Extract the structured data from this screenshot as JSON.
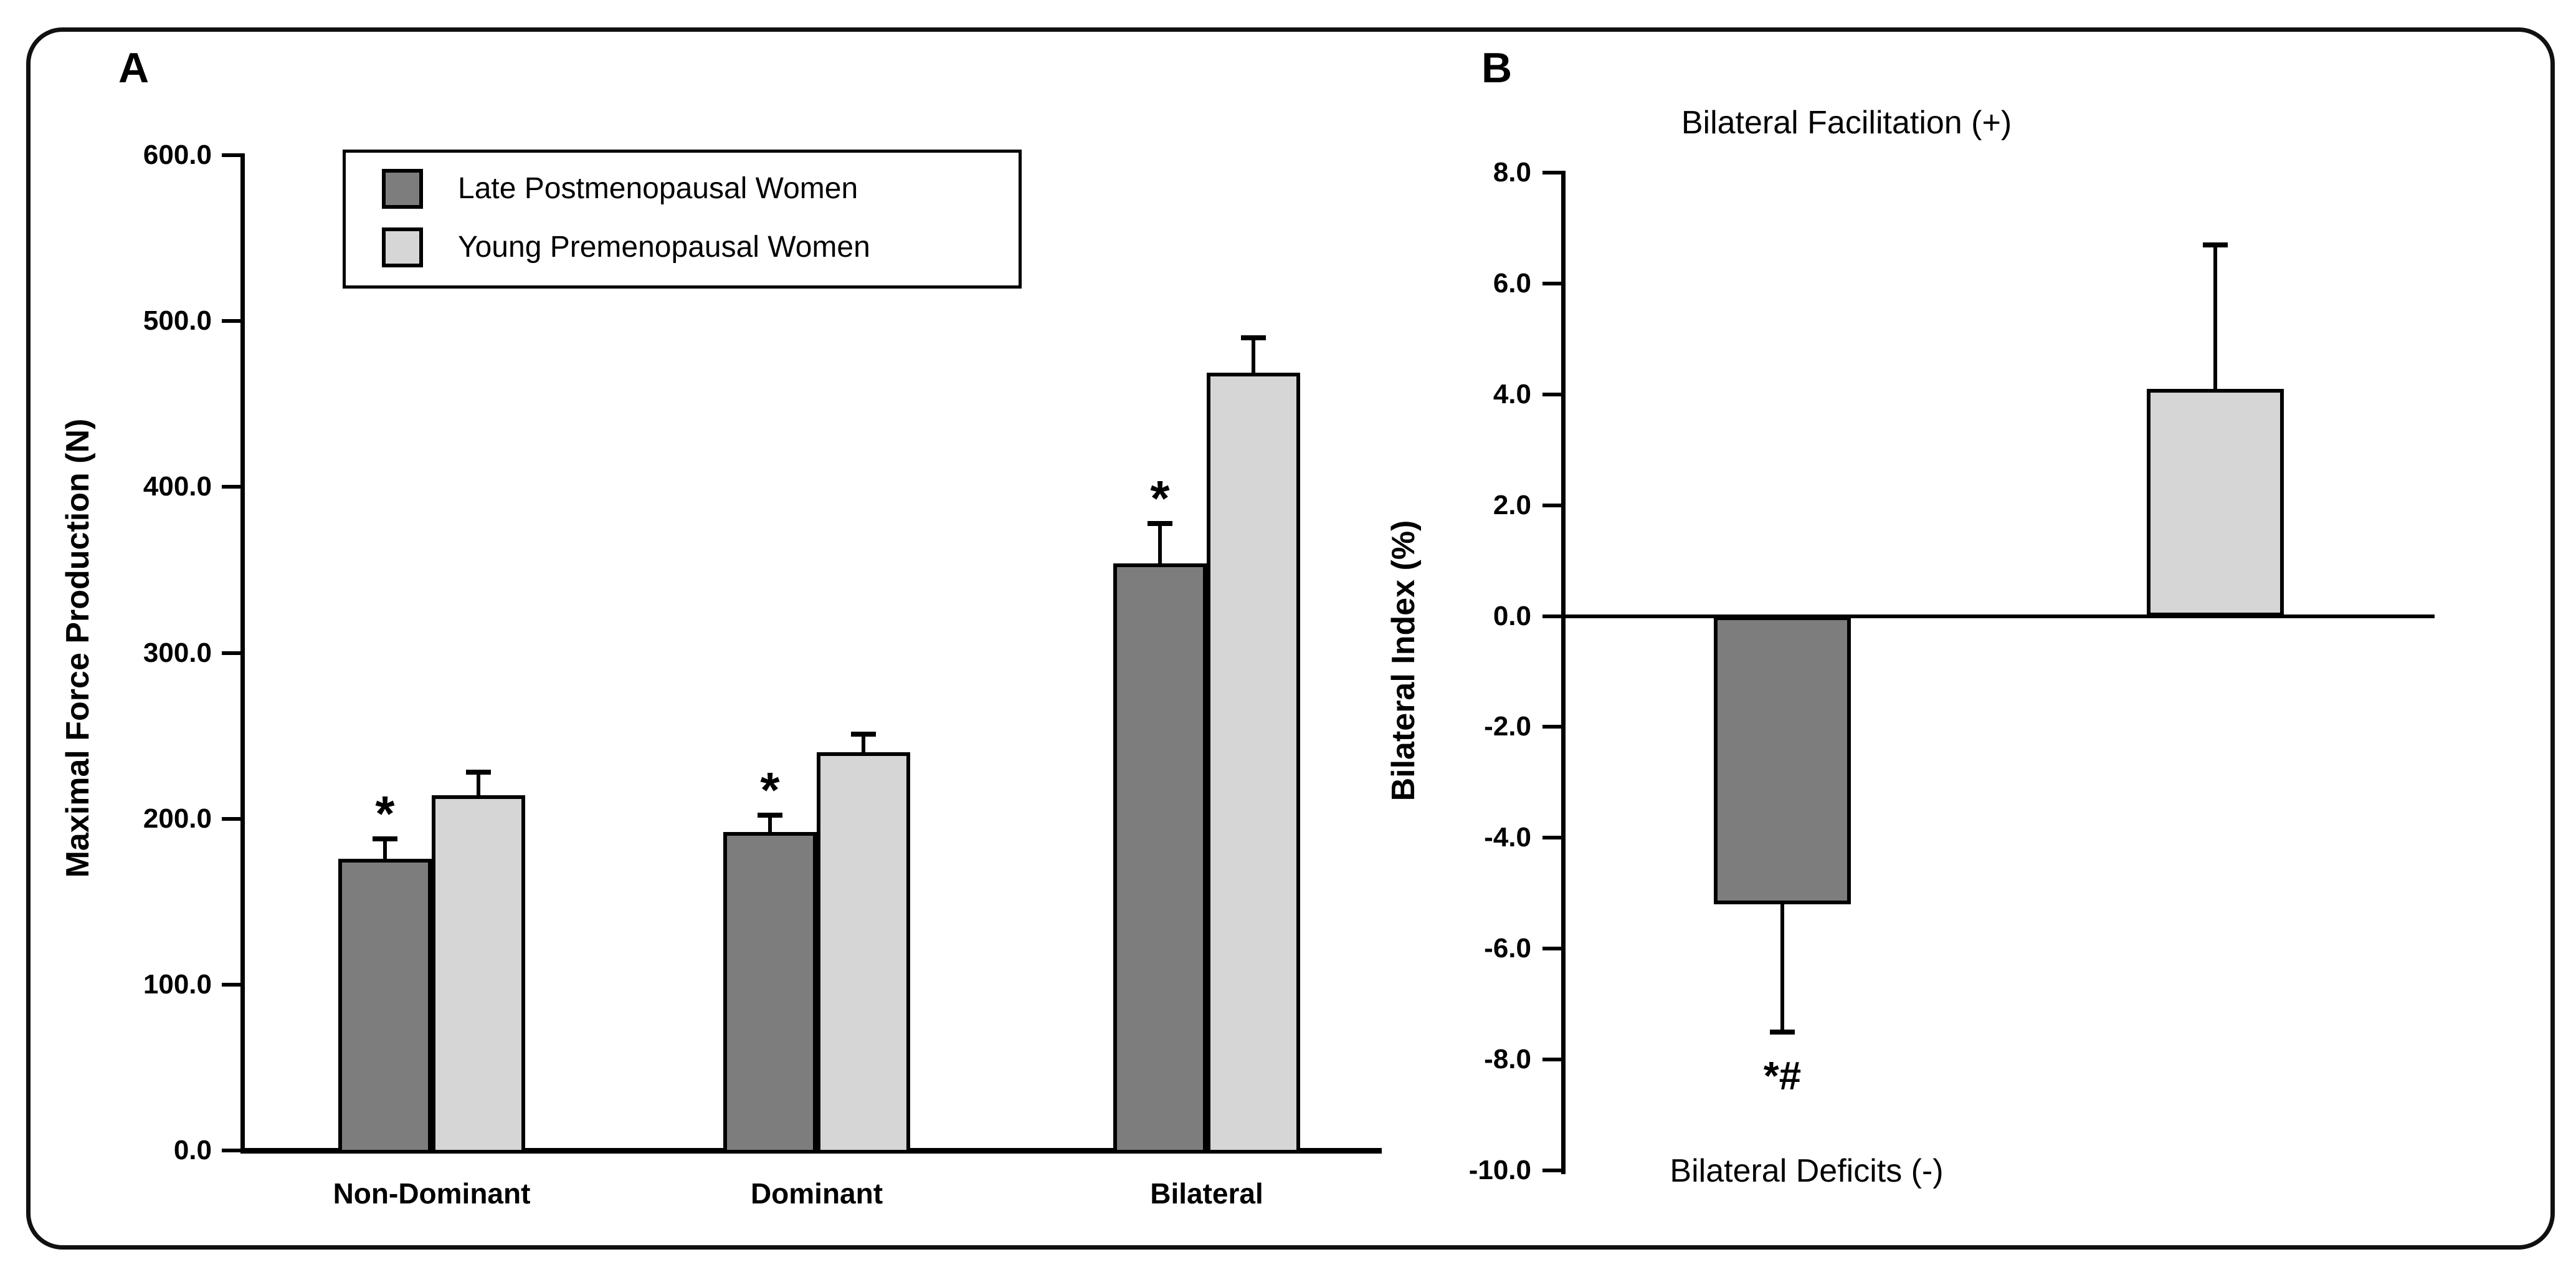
{
  "figure": {
    "panel_a_label": "A",
    "panel_b_label": "B"
  },
  "legend": {
    "items": [
      {
        "label": "Late Postmenopausal Women",
        "color_key": "dark"
      },
      {
        "label": "Young Premenopausal Women",
        "color_key": "light"
      }
    ]
  },
  "colors": {
    "series_dark": "#7d7d7d",
    "series_light": "#d6d6d6",
    "axis": "#000000",
    "background": "#ffffff"
  },
  "chart_data": [
    {
      "type": "bar",
      "panel": "A",
      "ylabel": "Maximal Force Production (N)",
      "categories": [
        "Non-Dominant",
        "Dominant",
        "Bilateral"
      ],
      "series": [
        {
          "name": "Late Postmenopausal Women",
          "color_key": "dark",
          "values": [
            176,
            192,
            354
          ],
          "errors": [
            12,
            10,
            24
          ],
          "significance": [
            "*",
            "*",
            "*"
          ]
        },
        {
          "name": "Young Premenopausal Women",
          "color_key": "light",
          "values": [
            214,
            240,
            469
          ],
          "errors": [
            14,
            11,
            21
          ],
          "significance": [
            "",
            "",
            ""
          ]
        }
      ],
      "ylim": [
        0,
        600
      ],
      "y_tick_values": [
        0,
        100,
        200,
        300,
        400,
        500,
        600
      ],
      "y_tick_labels": [
        "0.0",
        "100.0",
        "200.0",
        "300.0",
        "400.0",
        "500.0",
        "600.0"
      ],
      "grid": false,
      "legend_position": "upper-left"
    },
    {
      "type": "bar",
      "panel": "B",
      "ylabel": "Bilateral Index (%)",
      "top_annotation": "Bilateral Facilitation (+)",
      "bottom_annotation": "Bilateral Deficits (-)",
      "series": [
        {
          "name": "Late Postmenopausal Women",
          "color_key": "dark",
          "value": -5.2,
          "error": 2.3,
          "annotation": "*#"
        },
        {
          "name": "Young Premenopausal Women",
          "color_key": "light",
          "value": 4.1,
          "error": 2.6,
          "annotation": ""
        }
      ],
      "ylim": [
        -10,
        8
      ],
      "y_tick_values": [
        8,
        6,
        4,
        2,
        0,
        -2,
        -4,
        -6,
        -8,
        -10
      ],
      "y_tick_labels": [
        "8.0",
        "6.0",
        "4.0",
        "2.0",
        "0.0",
        "-2.0",
        "-4.0",
        "-6.0",
        "-8.0",
        "-10.0"
      ],
      "grid": false
    }
  ]
}
